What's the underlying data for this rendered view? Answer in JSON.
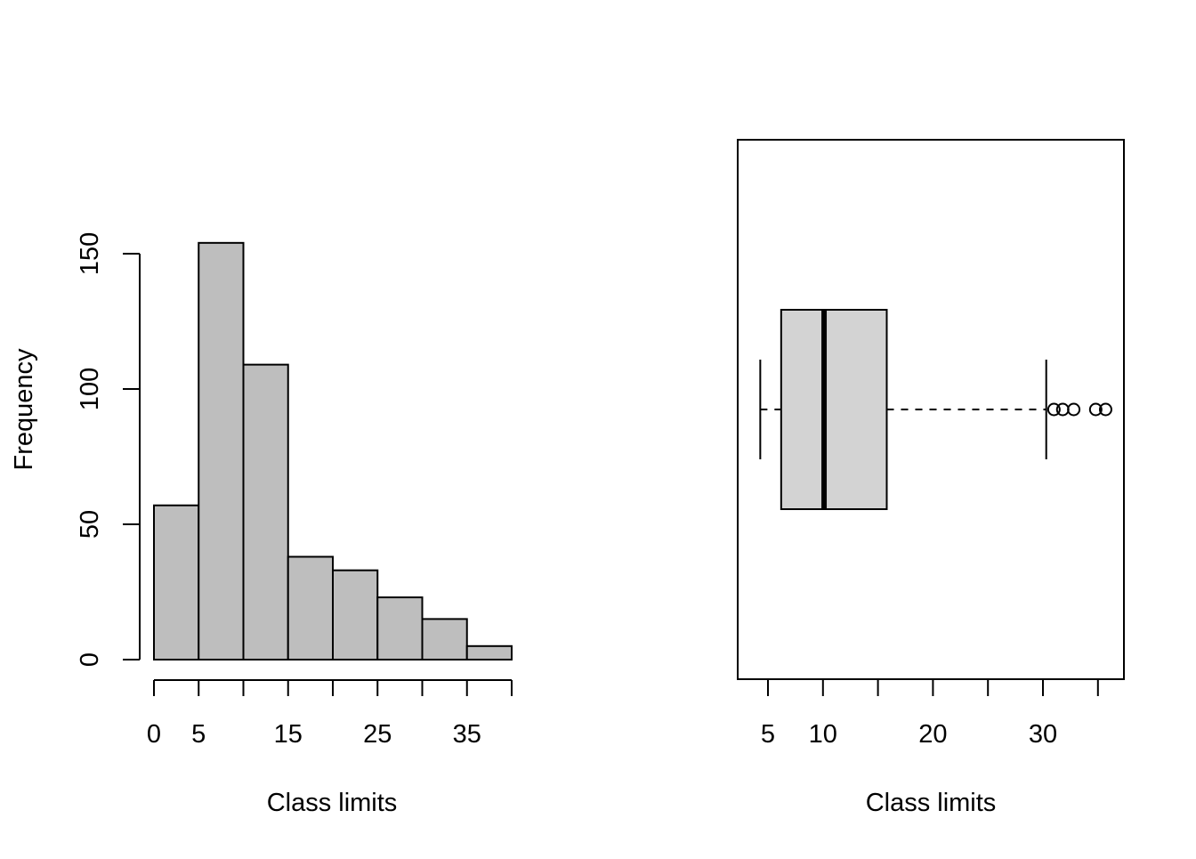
{
  "chart_data": [
    {
      "type": "bar",
      "subtype": "histogram",
      "title": "",
      "xlabel": "Class limits",
      "ylabel": "Frequency",
      "bins": [
        [
          0,
          5
        ],
        [
          5,
          10
        ],
        [
          10,
          15
        ],
        [
          15,
          20
        ],
        [
          20,
          25
        ],
        [
          25,
          30
        ],
        [
          30,
          35
        ],
        [
          35,
          40
        ]
      ],
      "values": [
        57,
        154,
        109,
        38,
        33,
        23,
        15,
        5
      ],
      "xlim": [
        0,
        40
      ],
      "ylim": [
        0,
        154
      ],
      "x_ticks": [
        0,
        5,
        10,
        15,
        20,
        25,
        30,
        35,
        40
      ],
      "x_tick_labels": [
        "0",
        "5",
        "",
        "15",
        "",
        "25",
        "",
        "35",
        ""
      ],
      "y_ticks": [
        0,
        50,
        100,
        150
      ],
      "y_tick_labels": [
        "0",
        "50",
        "100",
        "150"
      ],
      "bar_color": "#bebebe",
      "grid": false
    },
    {
      "type": "box",
      "orientation": "horizontal",
      "title": "",
      "xlabel": "Class limits",
      "xlim": [
        3.3,
        38.6
      ],
      "x_ticks": [
        5,
        10,
        15,
        20,
        25,
        30,
        35
      ],
      "x_tick_labels": [
        "5",
        "10",
        "",
        "20",
        "",
        "30",
        ""
      ],
      "whisker_low": 4.3,
      "q1": 6.2,
      "median": 10.1,
      "q3": 15.8,
      "whisker_high": 30.3,
      "outliers": [
        31.0,
        31.8,
        32.8,
        34.8,
        35.7
      ],
      "box_color": "#d3d3d3",
      "grid": false
    }
  ]
}
